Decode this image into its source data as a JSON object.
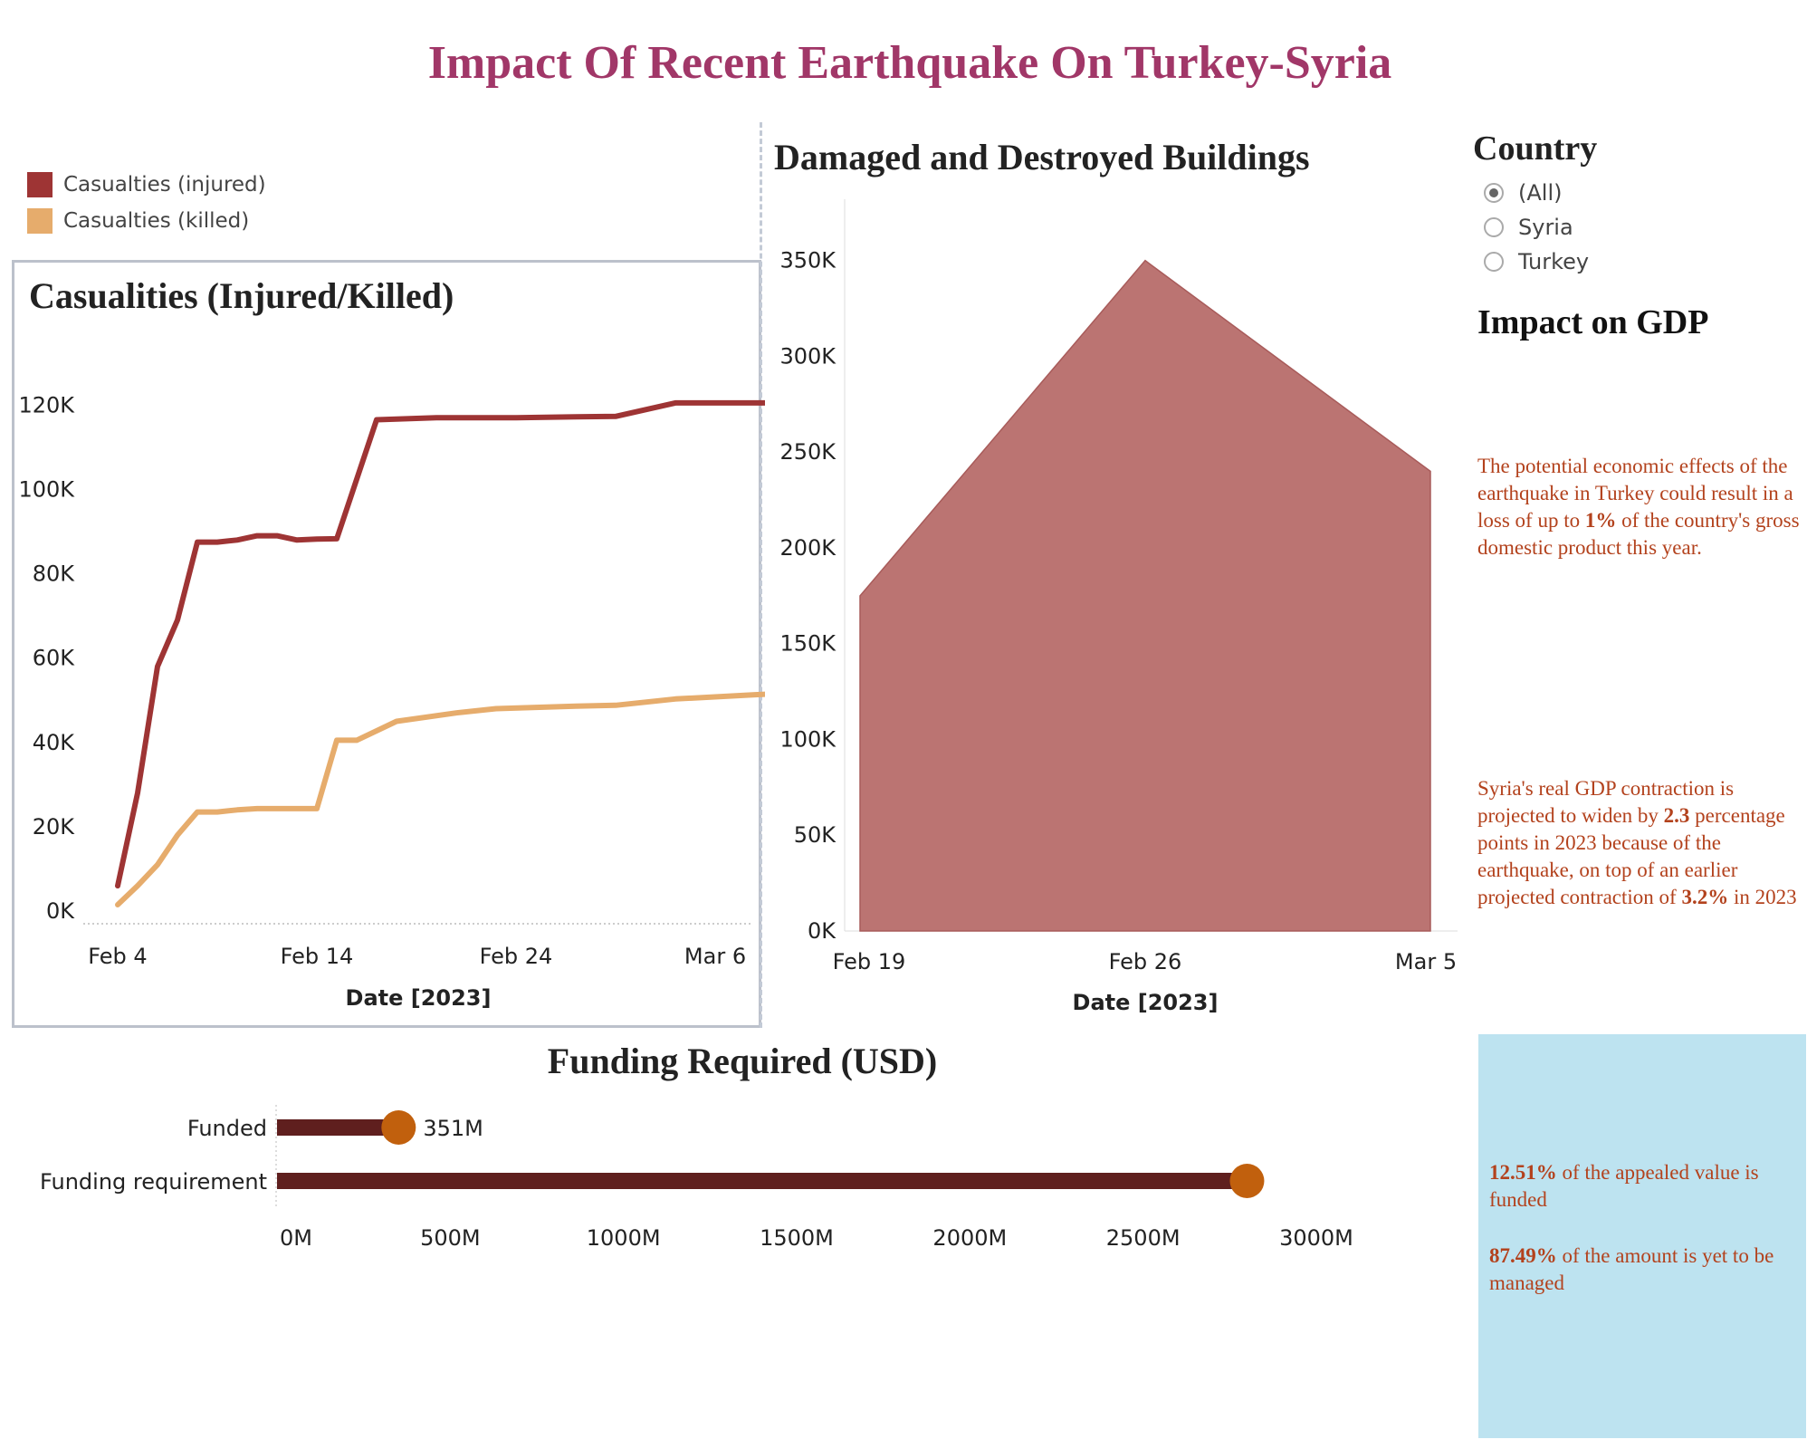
{
  "title": "Impact Of Recent Earthquake On Turkey-Syria",
  "casualties": {
    "panel_title": "Casualities (Injured/Killed)",
    "legend": [
      {
        "label": "Casualties (injured)",
        "color": "#9e3434"
      },
      {
        "label": "Casualties (killed)",
        "color": "#e6ac6c"
      }
    ]
  },
  "buildings": {
    "panel_title": "Damaged and Destroyed Buildings"
  },
  "country_filter": {
    "title": "Country",
    "options": [
      {
        "label": "(All)",
        "checked": true
      },
      {
        "label": "Syria",
        "checked": false
      },
      {
        "label": "Turkey",
        "checked": false
      }
    ]
  },
  "gdp": {
    "title": "Impact on GDP",
    "turkey": {
      "before": "The potential economic effects of the earthquake in Turkey could result in a loss of up to ",
      "highlight": "1%",
      "after": " of the country's gross domestic product this year."
    },
    "syria": {
      "p1": "Syria's real GDP contraction is projected to widen by ",
      "h1": "2.3",
      "p2": " percentage points in 2023 because of the earthquake, on top of an earlier projected contraction of ",
      "h2": "3.2%",
      "p3": " in 2023"
    }
  },
  "funding": {
    "panel_title": "Funding Required (USD)",
    "funded_pct": "12.51%",
    "funded_text": " of the appealed value is funded",
    "remaining_pct": "87.49%",
    "remaining_text": " of the amount is yet to be managed"
  },
  "chart_data": [
    {
      "type": "line",
      "title": "Casualities (Injured/Killed)",
      "xlabel": "Date [2023]",
      "ylabel": "",
      "x_ticks": [
        "Feb 4",
        "Feb 14",
        "Feb 24",
        "Mar 6"
      ],
      "y_ticks": [
        "0K",
        "20K",
        "40K",
        "60K",
        "80K",
        "100K",
        "120K"
      ],
      "ylim": [
        0,
        128000
      ],
      "series": [
        {
          "name": "Casualties (injured)",
          "color": "#9e3434",
          "points": [
            [
              "2023-02-04",
              6000
            ],
            [
              "2023-02-05",
              28000
            ],
            [
              "2023-02-06",
              58000
            ],
            [
              "2023-02-07",
              69000
            ],
            [
              "2023-02-08",
              87500
            ],
            [
              "2023-02-09",
              87500
            ],
            [
              "2023-02-10",
              88000
            ],
            [
              "2023-02-11",
              89000
            ],
            [
              "2023-02-12",
              89000
            ],
            [
              "2023-02-13",
              88000
            ],
            [
              "2023-02-14",
              88200
            ],
            [
              "2023-02-15",
              88300
            ],
            [
              "2023-02-17",
              116500
            ],
            [
              "2023-02-20",
              117000
            ],
            [
              "2023-02-24",
              117000
            ],
            [
              "2023-02-27",
              117200
            ],
            [
              "2023-03-01",
              117300
            ],
            [
              "2023-03-04",
              120500
            ],
            [
              "2023-03-08",
              120500
            ],
            [
              "2023-03-11",
              120500
            ]
          ]
        },
        {
          "name": "Casualties (killed)",
          "color": "#e6ac6c",
          "points": [
            [
              "2023-02-04",
              1500
            ],
            [
              "2023-02-05",
              6000
            ],
            [
              "2023-02-06",
              11000
            ],
            [
              "2023-02-07",
              18000
            ],
            [
              "2023-02-08",
              23500
            ],
            [
              "2023-02-09",
              23500
            ],
            [
              "2023-02-10",
              24000
            ],
            [
              "2023-02-11",
              24300
            ],
            [
              "2023-02-12",
              24300
            ],
            [
              "2023-02-13",
              24300
            ],
            [
              "2023-02-14",
              24300
            ],
            [
              "2023-02-15",
              40500
            ],
            [
              "2023-02-16",
              40500
            ],
            [
              "2023-02-18",
              45000
            ],
            [
              "2023-02-21",
              47000
            ],
            [
              "2023-02-23",
              48000
            ],
            [
              "2023-02-27",
              48600
            ],
            [
              "2023-03-01",
              48800
            ],
            [
              "2023-03-04",
              50300
            ],
            [
              "2023-03-08",
              51300
            ],
            [
              "2023-03-11",
              52000
            ]
          ]
        }
      ]
    },
    {
      "type": "area",
      "title": "Damaged and Destroyed Buildings",
      "xlabel": "Date [2023]",
      "ylabel": "",
      "x_ticks": [
        "Feb 19",
        "Feb 26",
        "Mar 5"
      ],
      "y_ticks": [
        "0K",
        "50K",
        "100K",
        "150K",
        "200K",
        "250K",
        "300K",
        "350K"
      ],
      "ylim": [
        0,
        365000
      ],
      "series": [
        {
          "name": "",
          "color": "#bb7472",
          "points": [
            [
              "2023-02-19",
              175000
            ],
            [
              "2023-02-26",
              350000
            ],
            [
              "2023-03-05",
              240000
            ]
          ]
        }
      ]
    },
    {
      "type": "bar",
      "title": "Funding Required (USD)",
      "categories": [
        "Funded",
        "Funding requirement"
      ],
      "values": [
        351,
        2800
      ],
      "unit": "M",
      "data_labels": [
        "351M",
        ""
      ],
      "x_ticks": [
        "0M",
        "500M",
        "1000M",
        "1500M",
        "2000M",
        "2500M",
        "3000M"
      ],
      "xlim": [
        0,
        3000
      ],
      "bar_color": "#5f1f1e",
      "dot_color": "#c1600d"
    }
  ]
}
